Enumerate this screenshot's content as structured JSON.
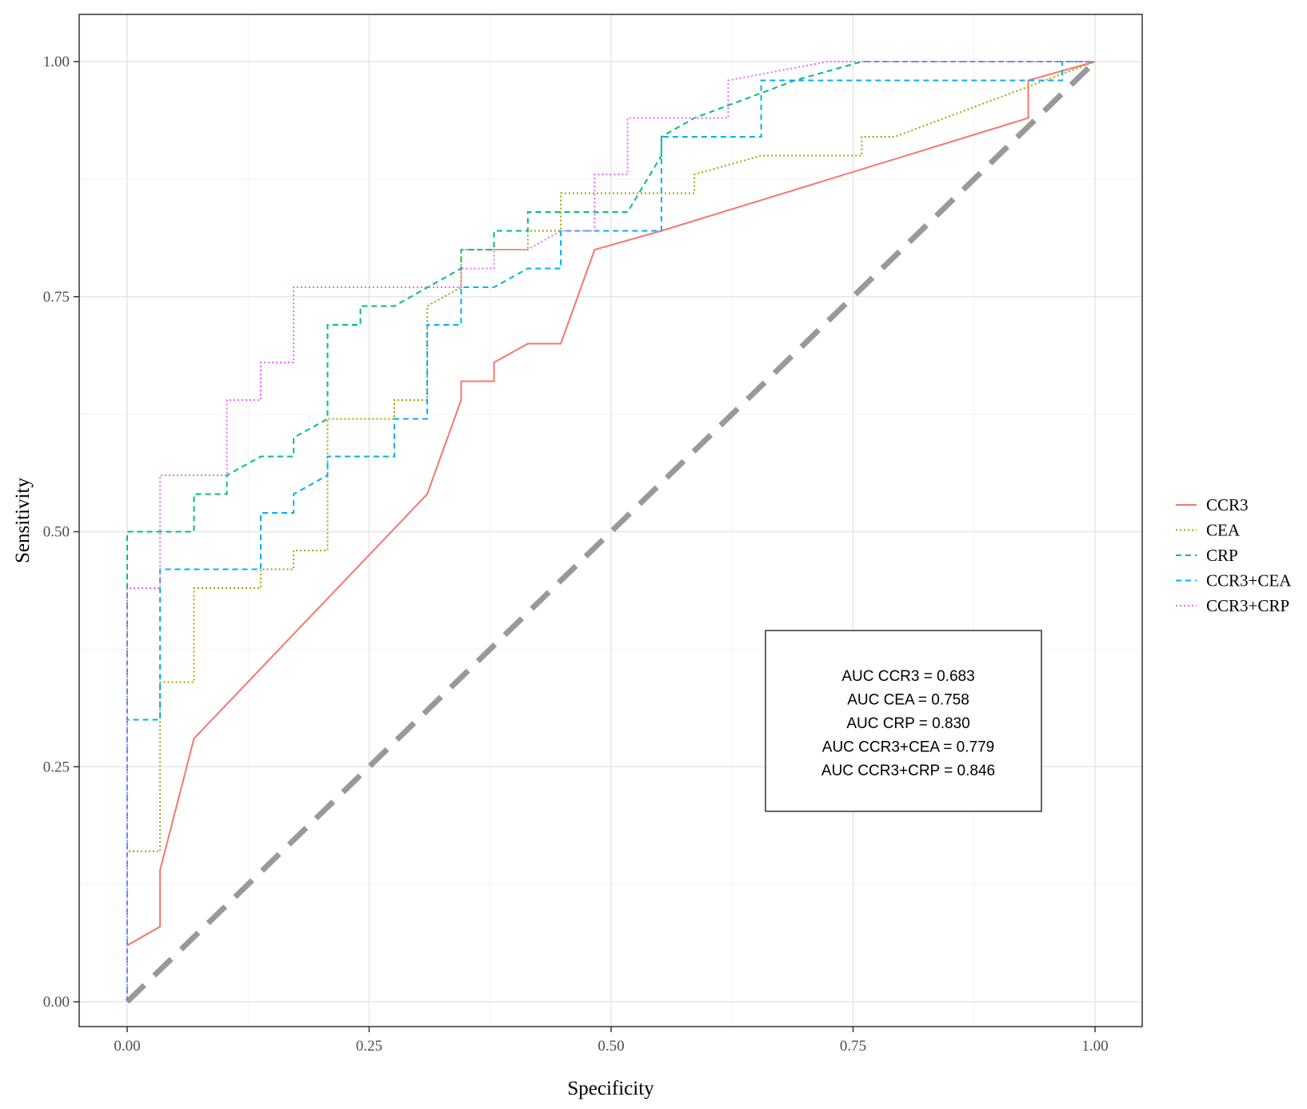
{
  "chart_data": {
    "type": "line",
    "xlabel": "Specificity",
    "ylabel": "Sensitivity",
    "xlim": [
      -0.05,
      1.05
    ],
    "ylim": [
      -0.05,
      1.05
    ],
    "x_ticks": [
      "0.00",
      "0.25",
      "0.50",
      "0.75",
      "1.00"
    ],
    "y_ticks": [
      "0.00",
      "0.25",
      "0.50",
      "0.75",
      "1.00"
    ],
    "grid": true,
    "legend_position": "right",
    "series": [
      {
        "name": "CCR3",
        "color": "#f8766d",
        "linestyle": "solid",
        "points": [
          [
            0,
            0.06
          ],
          [
            0.034,
            0.08
          ],
          [
            0.034,
            0.14
          ],
          [
            0.069,
            0.28
          ],
          [
            0.31,
            0.54
          ],
          [
            0.345,
            0.64
          ],
          [
            0.345,
            0.66
          ],
          [
            0.379,
            0.66
          ],
          [
            0.379,
            0.68
          ],
          [
            0.414,
            0.7
          ],
          [
            0.448,
            0.7
          ],
          [
            0.483,
            0.8
          ],
          [
            0.552,
            0.82
          ],
          [
            0.931,
            0.94
          ],
          [
            0.931,
            0.98
          ],
          [
            1,
            1
          ]
        ]
      },
      {
        "name": "CEA",
        "color": "#a3a500",
        "linestyle": "dotted",
        "points": [
          [
            0,
            0
          ],
          [
            0,
            0.16
          ],
          [
            0.034,
            0.16
          ],
          [
            0.034,
            0.34
          ],
          [
            0.069,
            0.34
          ],
          [
            0.069,
            0.44
          ],
          [
            0.138,
            0.44
          ],
          [
            0.138,
            0.46
          ],
          [
            0.172,
            0.46
          ],
          [
            0.172,
            0.48
          ],
          [
            0.207,
            0.48
          ],
          [
            0.207,
            0.62
          ],
          [
            0.276,
            0.62
          ],
          [
            0.276,
            0.64
          ],
          [
            0.31,
            0.64
          ],
          [
            0.31,
            0.74
          ],
          [
            0.345,
            0.76
          ],
          [
            0.345,
            0.8
          ],
          [
            0.414,
            0.8
          ],
          [
            0.414,
            0.82
          ],
          [
            0.448,
            0.82
          ],
          [
            0.448,
            0.86
          ],
          [
            0.586,
            0.86
          ],
          [
            0.586,
            0.88
          ],
          [
            0.655,
            0.9
          ],
          [
            0.759,
            0.9
          ],
          [
            0.759,
            0.92
          ],
          [
            0.793,
            0.92
          ],
          [
            1,
            1
          ]
        ]
      },
      {
        "name": "CRP",
        "color": "#00bf7d",
        "linestyle": "dashed",
        "points": [
          [
            0,
            0
          ],
          [
            0,
            0.5
          ],
          [
            0.069,
            0.5
          ],
          [
            0.069,
            0.54
          ],
          [
            0.103,
            0.54
          ],
          [
            0.103,
            0.56
          ],
          [
            0.138,
            0.58
          ],
          [
            0.172,
            0.58
          ],
          [
            0.172,
            0.6
          ],
          [
            0.207,
            0.62
          ],
          [
            0.207,
            0.72
          ],
          [
            0.241,
            0.72
          ],
          [
            0.241,
            0.74
          ],
          [
            0.276,
            0.74
          ],
          [
            0.345,
            0.78
          ],
          [
            0.345,
            0.8
          ],
          [
            0.379,
            0.8
          ],
          [
            0.379,
            0.82
          ],
          [
            0.414,
            0.82
          ],
          [
            0.414,
            0.84
          ],
          [
            0.517,
            0.84
          ],
          [
            0.552,
            0.9
          ],
          [
            0.552,
            0.92
          ],
          [
            0.586,
            0.94
          ],
          [
            0.69,
            0.98
          ],
          [
            0.759,
            1.0
          ],
          [
            1,
            1
          ]
        ]
      },
      {
        "name": "CCR3+CEA",
        "color": "#00b0f6",
        "linestyle": "dashed",
        "points": [
          [
            0,
            0
          ],
          [
            0,
            0.3
          ],
          [
            0.034,
            0.3
          ],
          [
            0.034,
            0.46
          ],
          [
            0.138,
            0.46
          ],
          [
            0.138,
            0.52
          ],
          [
            0.172,
            0.52
          ],
          [
            0.172,
            0.54
          ],
          [
            0.207,
            0.56
          ],
          [
            0.207,
            0.58
          ],
          [
            0.276,
            0.58
          ],
          [
            0.276,
            0.62
          ],
          [
            0.31,
            0.62
          ],
          [
            0.31,
            0.72
          ],
          [
            0.345,
            0.72
          ],
          [
            0.345,
            0.76
          ],
          [
            0.379,
            0.76
          ],
          [
            0.414,
            0.78
          ],
          [
            0.448,
            0.78
          ],
          [
            0.448,
            0.82
          ],
          [
            0.552,
            0.82
          ],
          [
            0.552,
            0.92
          ],
          [
            0.655,
            0.92
          ],
          [
            0.655,
            0.98
          ],
          [
            0.966,
            0.98
          ],
          [
            0.966,
            1.0
          ],
          [
            1,
            1
          ]
        ]
      },
      {
        "name": "CCR3+CRP",
        "color": "#e76bf3",
        "linestyle": "dotted",
        "points": [
          [
            0,
            0
          ],
          [
            0,
            0.44
          ],
          [
            0.034,
            0.44
          ],
          [
            0.034,
            0.56
          ],
          [
            0.103,
            0.56
          ],
          [
            0.103,
            0.64
          ],
          [
            0.138,
            0.64
          ],
          [
            0.138,
            0.68
          ],
          [
            0.172,
            0.68
          ],
          [
            0.172,
            0.76
          ],
          [
            0.345,
            0.76
          ],
          [
            0.345,
            0.78
          ],
          [
            0.379,
            0.78
          ],
          [
            0.379,
            0.8
          ],
          [
            0.414,
            0.8
          ],
          [
            0.448,
            0.82
          ],
          [
            0.483,
            0.82
          ],
          [
            0.483,
            0.88
          ],
          [
            0.517,
            0.88
          ],
          [
            0.517,
            0.94
          ],
          [
            0.621,
            0.94
          ],
          [
            0.621,
            0.98
          ],
          [
            0.724,
            1.0
          ],
          [
            1,
            1
          ]
        ]
      }
    ],
    "reference_line": {
      "points": [
        [
          0,
          0
        ],
        [
          1,
          1
        ]
      ],
      "color": "#999999",
      "linestyle": "dashed"
    },
    "annotation": {
      "lines": [
        "AUC CCR3 = 0.683",
        "AUC CEA = 0.758",
        "AUC CRP = 0.830",
        "AUC CCR3+CEA = 0.779",
        "AUC CCR3+CRP = 0.846"
      ],
      "position": "bottom-right"
    }
  }
}
